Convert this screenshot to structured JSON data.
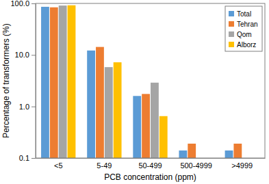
{
  "chart_data": {
    "type": "bar",
    "x_label": "PCB concentration (ppm)",
    "y_label": "Percentage of transformers (%)",
    "categories": [
      "<5",
      "5-49",
      "50-499",
      "500-4999",
      ">4999"
    ],
    "series": [
      {
        "name": "Total",
        "color": "#5b9bd5",
        "values": [
          86,
          12.2,
          1.6,
          0.14,
          0.14
        ]
      },
      {
        "name": "Tehran",
        "color": "#ed7d31",
        "values": [
          84,
          14.3,
          1.75,
          0.19,
          0.19
        ]
      },
      {
        "name": "Qom",
        "color": "#a5a5a5",
        "values": [
          91,
          5.8,
          2.9,
          null,
          null
        ]
      },
      {
        "name": "Alborz",
        "color": "#ffc000",
        "values": [
          92,
          7.2,
          0.65,
          null,
          null
        ]
      }
    ],
    "ylim": [
      0.1,
      100
    ],
    "yticks": [
      0.1,
      {
        "value": 1,
        "label": "1.0"
      },
      {
        "value": 10,
        "label": "10.0"
      },
      {
        "value": 100,
        "label": "100.0"
      }
    ],
    "log": "y",
    "grid": false,
    "legend": "upper right"
  }
}
